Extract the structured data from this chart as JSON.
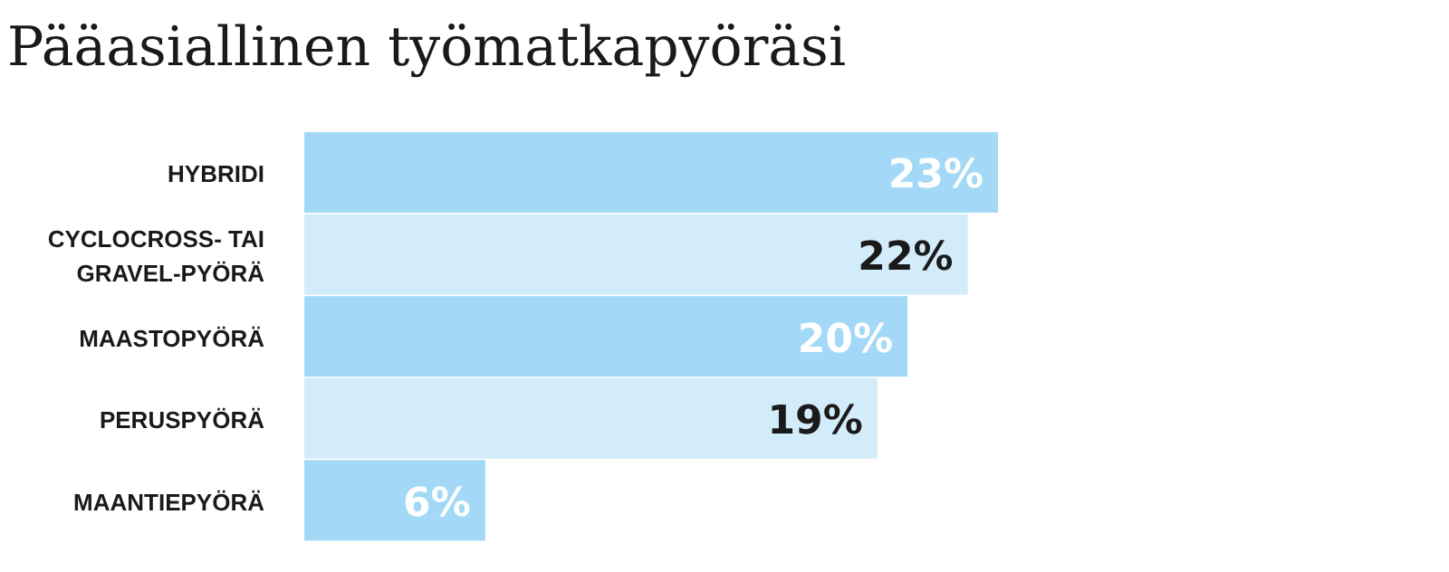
{
  "chart_data": {
    "type": "bar",
    "orientation": "horizontal",
    "title": "Pääasiallinen työmatkapyöräsi",
    "categories": [
      "HYBRIDI",
      "CYCLOCROSS- TAI GRAVEL-PYÖRÄ",
      "MAASTOPYÖRÄ",
      "PERUSPYÖRÄ",
      "MAANTIEPYÖRÄ"
    ],
    "values": [
      23,
      22,
      20,
      19,
      6
    ],
    "value_labels": [
      "23%",
      "22%",
      "20%",
      "19%",
      "6%"
    ],
    "colors": [
      "#a3d9f6",
      "#d3ecfa",
      "#a3d9f6",
      "#d3ecfa",
      "#a3d9f6"
    ]
  }
}
